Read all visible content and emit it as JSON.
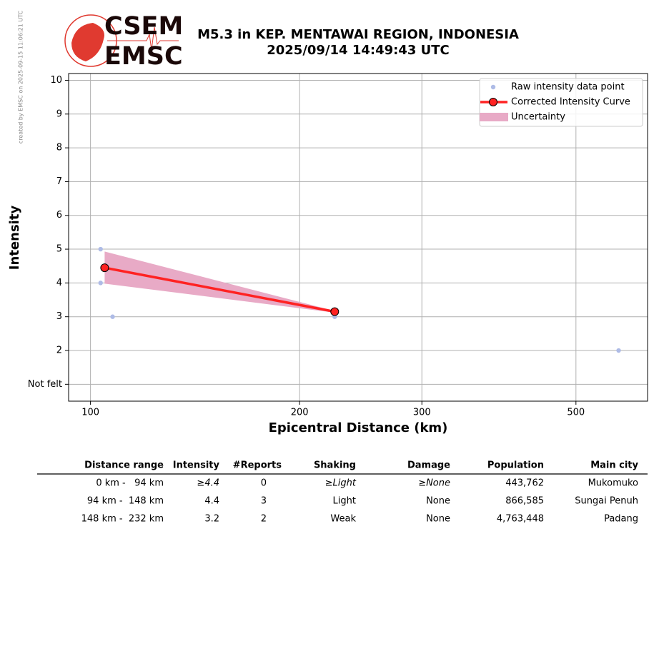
{
  "side_note": "created by EMSC on 2025-09-15 11:06:21 UTC",
  "logo": {
    "top": "CSEM",
    "bottom": "EMSC"
  },
  "chart_data": {
    "type": "line",
    "title": "M5.3 in KEP. MENTAWAI REGION, INDONESIA",
    "subtitle": "2025/09/14 14:49:43 UTC",
    "x_label": "Epicentral Distance (km)",
    "y_label": "Intensity",
    "xscale": "log",
    "grid": true,
    "legend": "upper right",
    "xlim": [
      93,
      634
    ],
    "ylim": [
      0.5,
      10.2
    ],
    "xticks": [
      100,
      200,
      300,
      500
    ],
    "yticks": [
      {
        "value": 1,
        "label": "Not felt"
      },
      2,
      3,
      4,
      5,
      6,
      7,
      8,
      9,
      10
    ],
    "series": [
      {
        "name": "Raw intensity data point",
        "color": "#aebbe6",
        "style": "points",
        "x": [
          103.4,
          103.4,
          107.6,
          224.7,
          576
        ],
        "values": [
          5,
          4,
          3,
          3,
          2
        ]
      },
      {
        "name": "Uncertainty",
        "color": "#e8aac6",
        "style": "band",
        "x": [
          104.8,
          224.7
        ],
        "upper": [
          4.93,
          3.17
        ],
        "lower": [
          3.98,
          3.12
        ]
      },
      {
        "name": "Corrected Intensity Curve",
        "color": "#ff2222",
        "style": "line",
        "x": [
          104.8,
          224.7
        ],
        "values": [
          4.45,
          3.15
        ]
      }
    ]
  },
  "table": {
    "columns": [
      "Distance range",
      "Intensity",
      "#Reports",
      "Shaking",
      "Damage",
      "Population",
      "Main city"
    ],
    "rows": [
      [
        "0 km -   94 km",
        "≥4.4",
        "0",
        "≥Light",
        "≥None",
        "443,762",
        "Mukomuko"
      ],
      [
        "94 km -  148 km",
        "4.4",
        "3",
        "Light",
        "None",
        "866,585",
        "Sungai Penuh"
      ],
      [
        "148 km -  232 km",
        "3.2",
        "2",
        "Weak",
        "None",
        "4,763,448",
        "Padang"
      ]
    ]
  }
}
